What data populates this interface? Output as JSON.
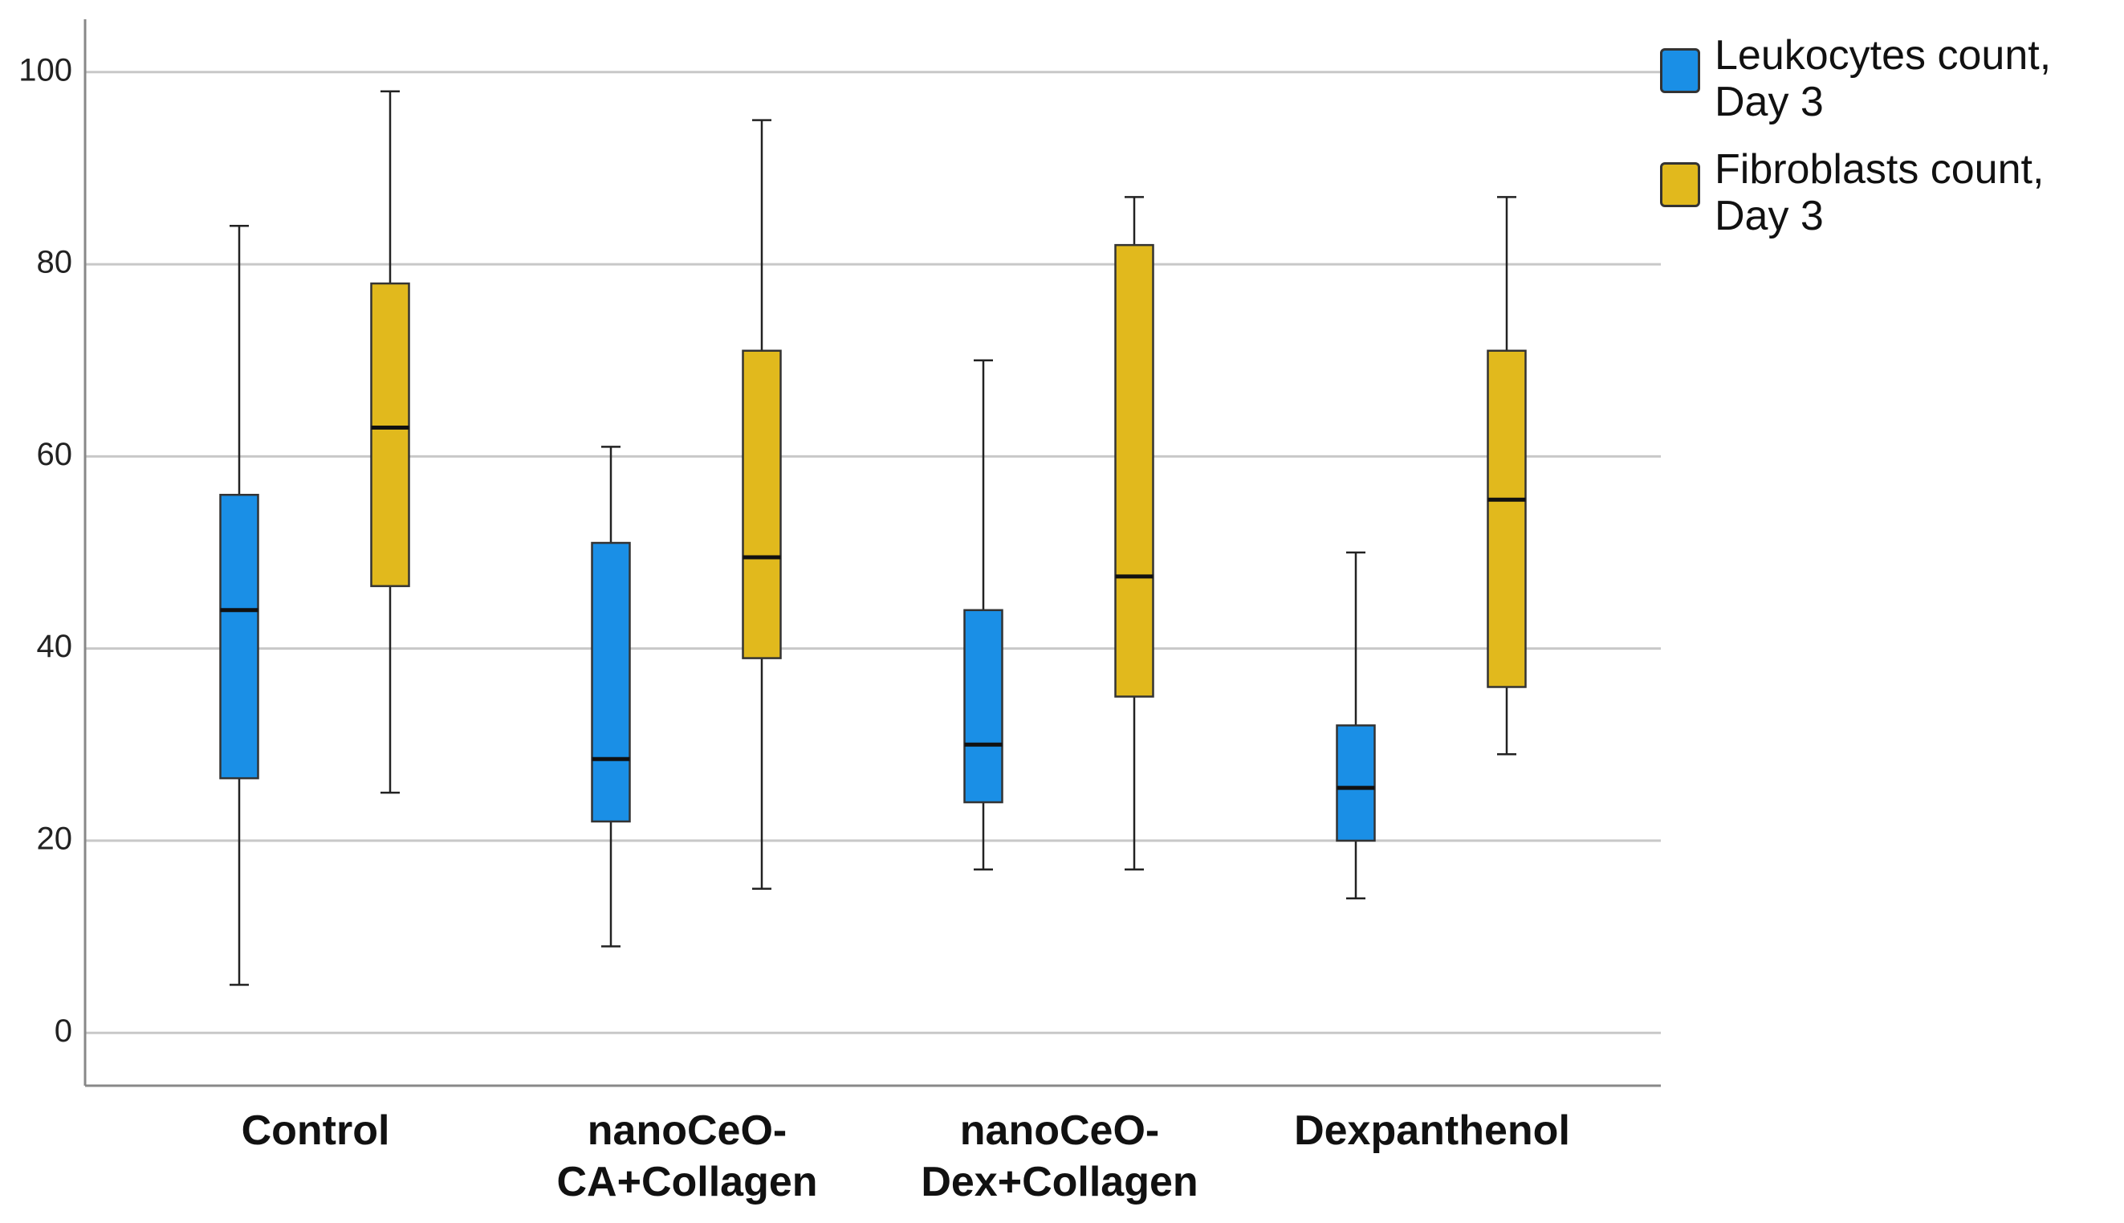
{
  "chart_data": {
    "type": "box",
    "categories": [
      [
        "Control"
      ],
      [
        "nanoCeO-",
        "CA+Collagen"
      ],
      [
        "nanoCeO-",
        "Dex+Collagen"
      ],
      [
        "Dexpanthenol"
      ]
    ],
    "series": [
      {
        "name": "Leukocytes count, Day 3",
        "color": "#1a8fe6",
        "values": [
          {
            "min": 5,
            "q1": 26.5,
            "median": 44,
            "q3": 56,
            "max": 84
          },
          {
            "min": 9,
            "q1": 22,
            "median": 28.5,
            "q3": 51,
            "max": 61
          },
          {
            "min": 17,
            "q1": 24,
            "median": 30,
            "q3": 44,
            "max": 70
          },
          {
            "min": 14,
            "q1": 20,
            "median": 25.5,
            "q3": 32,
            "max": 50
          }
        ]
      },
      {
        "name": "Fibroblasts count, Day 3",
        "color": "#e1b91d",
        "values": [
          {
            "min": 25,
            "q1": 46.5,
            "median": 63,
            "q3": 78,
            "max": 98
          },
          {
            "min": 15,
            "q1": 39,
            "median": 49.5,
            "q3": 71,
            "max": 95
          },
          {
            "min": 17,
            "q1": 35,
            "median": 47.5,
            "q3": 82,
            "max": 87
          },
          {
            "min": 29,
            "q1": 36,
            "median": 55.5,
            "q3": 71,
            "max": 87
          }
        ]
      }
    ],
    "ylim": [
      -5.5,
      105.5
    ],
    "yticks": [
      0,
      20,
      40,
      60,
      80,
      100
    ],
    "grid": true,
    "legend": "right"
  }
}
